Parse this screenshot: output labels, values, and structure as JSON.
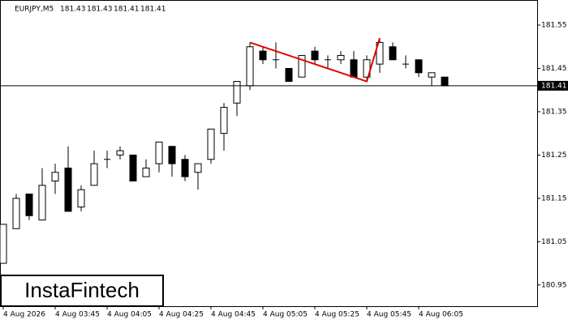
{
  "chart_data": {
    "type": "candlestick",
    "symbol": "EURJPY,M5",
    "categories": [
      "4 Aug 2026",
      null,
      null,
      null,
      "4 Aug 03:45",
      null,
      null,
      null,
      "4 Aug 04:05",
      null,
      null,
      null,
      "4 Aug 04:25",
      null,
      null,
      null,
      "4 Aug 04:45",
      null,
      null,
      null,
      "4 Aug 05:05",
      null,
      null,
      null,
      "4 Aug 05:25",
      null,
      null,
      null,
      "4 Aug 05:45",
      null,
      null,
      null,
      "4 Aug 06:05",
      null,
      null
    ],
    "open": [
      181.0,
      181.08,
      181.16,
      181.1,
      181.19,
      181.22,
      181.13,
      181.18,
      181.24,
      181.25,
      181.25,
      181.2,
      181.23,
      181.27,
      181.24,
      181.21,
      181.24,
      181.3,
      181.37,
      181.41,
      181.49,
      181.47,
      181.45,
      181.43,
      181.49,
      181.47,
      181.47,
      181.47,
      181.43,
      181.46,
      181.5,
      181.46,
      181.47,
      181.43,
      181.43
    ],
    "high": [
      181.09,
      181.16,
      181.16,
      181.22,
      181.23,
      181.27,
      181.18,
      181.26,
      181.26,
      181.27,
      181.25,
      181.24,
      181.28,
      181.27,
      181.25,
      181.23,
      181.31,
      181.37,
      181.42,
      181.51,
      181.5,
      181.51,
      181.45,
      181.48,
      181.5,
      181.48,
      181.49,
      181.49,
      181.48,
      181.52,
      181.51,
      181.48,
      181.47,
      181.44,
      181.43
    ],
    "low": [
      181.0,
      181.08,
      181.1,
      181.1,
      181.16,
      181.12,
      181.12,
      181.18,
      181.22,
      181.24,
      181.19,
      181.2,
      181.21,
      181.2,
      181.19,
      181.17,
      181.23,
      181.26,
      181.34,
      181.4,
      181.46,
      181.45,
      181.42,
      181.43,
      181.46,
      181.45,
      181.46,
      181.43,
      181.42,
      181.44,
      181.47,
      181.45,
      181.43,
      181.41,
      181.41
    ],
    "close": [
      181.09,
      181.15,
      181.11,
      181.18,
      181.21,
      181.12,
      181.17,
      181.23,
      181.24,
      181.26,
      181.19,
      181.22,
      181.28,
      181.23,
      181.2,
      181.23,
      181.31,
      181.36,
      181.42,
      181.5,
      181.47,
      181.47,
      181.42,
      181.48,
      181.47,
      181.47,
      181.48,
      181.43,
      181.47,
      181.51,
      181.47,
      181.46,
      181.44,
      181.44,
      181.41
    ],
    "up_color": "#ffffff",
    "down_color": "#000000",
    "edge_color": "#000000",
    "ylim": [
      180.901,
      181.608
    ],
    "yticks": [
      180.95,
      181.05,
      181.15,
      181.25,
      181.35,
      181.45,
      181.55
    ],
    "pattern_line": {
      "color": "#e00000",
      "x": [
        19,
        28,
        29
      ],
      "values": [
        181.51,
        181.42,
        181.52
      ]
    }
  },
  "watermark": "InstaFintech"
}
